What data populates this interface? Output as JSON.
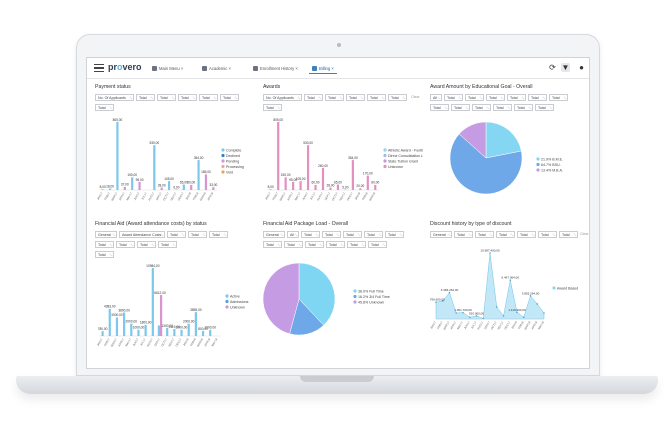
{
  "app": {
    "logo_a": "pr",
    "logo_b": "o",
    "logo_c": "vero"
  },
  "tabs": [
    {
      "label": "Main Menu ×"
    },
    {
      "label": "Academic ×"
    },
    {
      "label": "Enrollment History ×"
    },
    {
      "label": "Billing ×"
    }
  ],
  "clear_label": "Clear",
  "panels": {
    "payment_status": {
      "title": "Payment status",
      "filters": [
        "No. Of Applicants",
        "Total",
        "Total",
        "Total",
        "Total",
        "Total",
        "Total"
      ]
    },
    "awards": {
      "title": "Awards",
      "filters": [
        "No. Of Applicants",
        "Total",
        "Total",
        "Total",
        "Total",
        "Total",
        "Total"
      ]
    },
    "award_amount": {
      "title": "Award Amount by Educational Goal - Overall",
      "filters": [
        "All",
        "Total",
        "Total",
        "Total",
        "Total",
        "Total",
        "Total",
        "Total",
        "Total",
        "Total",
        "Total",
        "Total",
        "Total"
      ]
    },
    "financial_aid": {
      "title": "Financial Aid (Award attendance costs) by status",
      "filters": [
        "General",
        "Award Attendance Costs",
        "Total",
        "Total",
        "Total",
        "Total",
        "Total",
        "Total",
        "Total",
        "Total"
      ]
    },
    "package_load": {
      "title": "Financial Aid Package Load - Overall",
      "filters": [
        "General",
        "All",
        "Total",
        "Total",
        "Total",
        "Total",
        "Total",
        "Total",
        "Total",
        "Total",
        "Total",
        "Total",
        "Total"
      ]
    },
    "discount_history": {
      "title": "Discount history by type of discount",
      "filters": [
        "General",
        "Total",
        "Total",
        "Total",
        "Total",
        "Total",
        "Total"
      ]
    }
  },
  "chart_data": [
    {
      "type": "bar",
      "title": "Payment status",
      "categories": [
        "JAN17",
        "FEB17",
        "MAR17",
        "APR17",
        "MAY17",
        "JUN17",
        "JUL17",
        "AUG17",
        "SEP17",
        "OCT17",
        "NOV17",
        "DEC17",
        "JAN18",
        "FEB18",
        "MAR18",
        "APR18"
      ],
      "series": [
        {
          "name": "Complete",
          "color": "#7cc8ec",
          "values": [
            8,
            18,
            805,
            0,
            150,
            0,
            0,
            530,
            0,
            105,
            0,
            65,
            0,
            354,
            0,
            0
          ]
        },
        {
          "name": "Declined",
          "color": "#2f7fd0",
          "values": [
            0,
            0,
            0,
            0,
            0,
            0,
            0,
            0,
            0,
            0,
            0,
            0,
            0,
            0,
            0,
            0
          ]
        },
        {
          "name": "Pending",
          "color": "#d894cf",
          "values": [
            0,
            0,
            0,
            37,
            0,
            95,
            0,
            0,
            28,
            0,
            6,
            0,
            60,
            0,
            185,
            33
          ]
        },
        {
          "name": "Processing",
          "color": "#f2a3a7",
          "values": [
            0,
            0,
            0,
            0,
            0,
            0,
            0,
            0,
            0,
            0,
            0,
            0,
            0,
            0,
            0,
            0
          ]
        },
        {
          "name": "Void",
          "color": "#e5a65b",
          "values": [
            0,
            0,
            0,
            0,
            0,
            0,
            0,
            0,
            0,
            0,
            0,
            0,
            0,
            0,
            0,
            0
          ]
        }
      ],
      "data_labels": [
        "805,00",
        "530,00",
        "37,00",
        "95,00",
        "150,00",
        "105,00",
        "65,00",
        "28,00",
        "6,00",
        "8,00",
        "354,00",
        "185,00",
        "33,00",
        "60,00"
      ]
    },
    {
      "type": "bar",
      "title": "Awards",
      "categories": [
        "JAN17",
        "FEB17",
        "MAR17",
        "APR17",
        "MAY17",
        "JUN17",
        "JUL17",
        "AUG17",
        "SEP17",
        "OCT17",
        "NOV17",
        "DEC17",
        "JAN18",
        "FEB18",
        "MAR18"
      ],
      "series": [
        {
          "name": "Athletic Award - Football",
          "color": "#8fd4f0",
          "values": [
            0,
            0,
            0,
            0,
            0,
            0,
            0,
            0,
            0,
            0,
            0,
            0,
            0,
            0,
            0
          ]
        },
        {
          "name": "Direct Consolidation Loans",
          "color": "#a7b9e8",
          "values": [
            0,
            0,
            0,
            0,
            0,
            0,
            0,
            0,
            0,
            0,
            0,
            0,
            0,
            0,
            0
          ]
        },
        {
          "name": "State Tuition Grant",
          "color": "#c79ad6",
          "values": [
            0,
            0,
            0,
            0,
            0,
            0,
            0,
            0,
            0,
            0,
            0,
            0,
            0,
            0,
            0
          ]
        },
        {
          "name": "Unknown",
          "color": "#e48fbf",
          "values": [
            8,
            805,
            150,
            95,
            105,
            530,
            60,
            260,
            28,
            65,
            5,
            354,
            20,
            170,
            60
          ]
        }
      ],
      "data_labels": [
        "805,00",
        "530,00",
        "260,00",
        "150,00",
        "95,00",
        "105,00",
        "60,00",
        "8,00",
        "28,00",
        "65,00",
        "5,00",
        "354,00",
        "170,00"
      ]
    },
    {
      "type": "pie",
      "title": "Award Amount by Educational Goal - Overall",
      "series": [
        {
          "name": "B.M.E.",
          "value": 21.9,
          "label": "21.9% B.M.E.",
          "color": "#84d6f2"
        },
        {
          "name": "BSU",
          "value": 64.7,
          "label": "64.7% BSU.",
          "color": "#6ea8e8"
        },
        {
          "name": "M.B.A.",
          "value": 13.4,
          "label": "13.4% M.B.A.",
          "color": "#c59be4"
        }
      ]
    },
    {
      "type": "bar",
      "title": "Financial Aid (Award attendance costs) by status",
      "categories": [
        "JAN17",
        "FEB17",
        "MAR17",
        "APR17",
        "MAY17",
        "JUN17",
        "JUL17",
        "AUG17",
        "SEP17",
        "OCT17",
        "NOV17",
        "DEC17",
        "JAN18",
        "FEB18",
        "MAR18",
        "APR18",
        "MAY18"
      ],
      "series": [
        {
          "name": "Active",
          "color": "#7cc8ec",
          "values": [
            780,
            4383,
            3000,
            3800,
            2000,
            1000,
            1800,
            10984,
            1700,
            1300,
            1119,
            1000,
            2000,
            3855,
            800,
            1000,
            0
          ]
        },
        {
          "name": "Admissions",
          "color": "#5b9de0",
          "values": [
            0,
            0,
            0,
            0,
            0,
            0,
            0,
            0,
            0,
            0,
            0,
            0,
            0,
            0,
            0,
            0,
            0
          ]
        },
        {
          "name": "Unknown",
          "color": "#d894cf",
          "values": [
            0,
            0,
            0,
            0,
            0,
            0,
            0,
            0,
            6612,
            0,
            0,
            0,
            0,
            0,
            0,
            0,
            0
          ]
        }
      ],
      "data_labels": [
        "10.984.192,00",
        "1.3675",
        "4.383.264,00",
        "6.612.402,00",
        "780.512",
        "3.857.736,00",
        "1.119.500,00",
        "3.855.264,00"
      ]
    },
    {
      "type": "pie",
      "title": "Financial Aid Package Load - Overall",
      "series": [
        {
          "name": "Full Time",
          "value": 38.0,
          "label": "38.0% Full Time",
          "color": "#7fd6f2"
        },
        {
          "name": "3/4 Full Time",
          "value": 16.2,
          "label": "16.2% 3/4 Full Time",
          "color": "#6ea8e8"
        },
        {
          "name": "Unknown",
          "value": 45.8,
          "label": "45.8% Unknown",
          "color": "#c59be4"
        }
      ]
    },
    {
      "type": "area",
      "title": "Discount history by type of discount",
      "categories": [
        "JAN17",
        "FEB17",
        "MAR17",
        "APR17",
        "MAY17",
        "JUN17",
        "JUL17",
        "AUG17",
        "SEP17",
        "OCT17",
        "NOV17",
        "DEC17",
        "JAN18",
        "FEB18",
        "MAR18",
        "APR18",
        "MAY18"
      ],
      "series": [
        {
          "name": "Award Based",
          "color": "#8fd6f2",
          "values": [
            2799600,
            3000000,
            4383264,
            1000000,
            1061700,
            300000,
            520000,
            100000,
            10987400,
            2000000,
            500000,
            6467064,
            1119900,
            300000,
            3855264,
            2500000,
            1000000
          ]
        }
      ],
      "data_labels": [
        "10.987.400,00",
        "4.383.264,00",
        "6.467.064,00",
        "2.799.600,00",
        "1.061.700,00",
        "3.855.264,00",
        "520.000,00",
        "1.119.900,00"
      ]
    }
  ]
}
